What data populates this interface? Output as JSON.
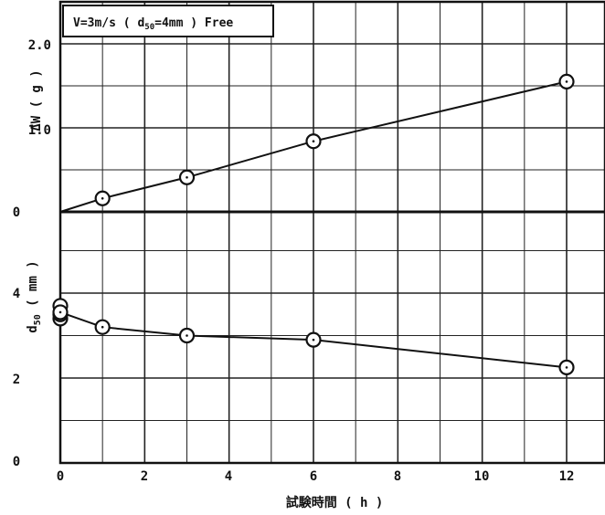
{
  "chart_data": [
    {
      "type": "line",
      "title": "V=3m/s ( d50=4mm ) Free",
      "ylabel": "ΔW ( g )",
      "xlabel": "試験時間 ( h )",
      "ylim": [
        0,
        2.0
      ],
      "xlim": [
        0,
        13
      ],
      "yticks": [
        "0",
        "1.0",
        "2.0"
      ],
      "series": [
        {
          "x": [
            0,
            1,
            3,
            6,
            12
          ],
          "y": [
            0,
            0.16,
            0.41,
            0.84,
            1.55
          ]
        }
      ],
      "grid": true
    },
    {
      "type": "line",
      "ylabel": "d50 ( mm )",
      "xlabel": "試験時間 ( h )",
      "ylim": [
        0,
        5
      ],
      "xlim": [
        0,
        13
      ],
      "yticks": [
        "0",
        "2",
        "4"
      ],
      "xticks": [
        "0",
        "2",
        "4",
        "6",
        "8",
        "10",
        "12"
      ],
      "series": [
        {
          "x": [
            0,
            0,
            0,
            0,
            1,
            3,
            6,
            12
          ],
          "y": [
            3.7,
            3.4,
            3.5,
            3.55,
            3.2,
            3.0,
            2.9,
            2.25
          ]
        }
      ],
      "grid": true
    }
  ],
  "labels": {
    "title_main": "V=3m/s ( d",
    "title_sub": "50",
    "title_rest": "=4mm ) Free",
    "top_ylabel": "ΔW ( g )",
    "bottom_ylabel_main": "d",
    "bottom_ylabel_sub": "50",
    "bottom_ylabel_rest": " ( mm )",
    "xlabel": "試験時間 ( h )",
    "top_ytick_0": "0",
    "top_ytick_1": "1.0",
    "top_ytick_2": "2.0",
    "bottom_ytick_0": "0",
    "bottom_ytick_2": "2",
    "bottom_ytick_4": "4",
    "xtick_0": "0",
    "xtick_2": "2",
    "xtick_4": "4",
    "xtick_6": "6",
    "xtick_8": "8",
    "xtick_10": "10",
    "xtick_12": "12"
  },
  "colors": {
    "ink": "#111111",
    "grid": "#222222",
    "background": "#ffffff"
  }
}
